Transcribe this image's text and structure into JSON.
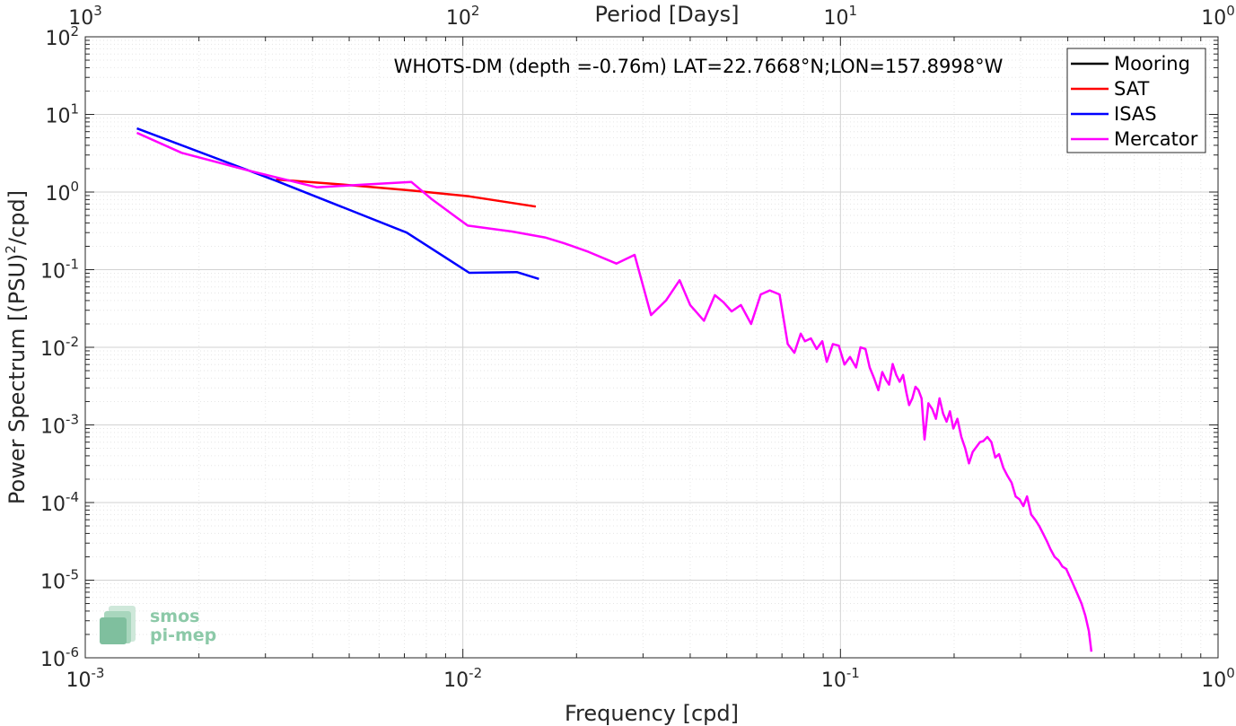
{
  "chart_data": {
    "type": "line",
    "title": "WHOTS-DM (depth =-0.76m) LAT=22.7668°N;LON=157.8998°W",
    "xlabel": "Frequency [cpd]",
    "ylabel_main": "Power Spectrum [(PSU)",
    "ylabel_sup": "2",
    "ylabel_tail": "/cpd]",
    "top_xlabel": "Period [Days]",
    "x_scale": "log",
    "y_scale": "log",
    "xlim": [
      0.001,
      1
    ],
    "ylim": [
      1e-06,
      100
    ],
    "grid": true,
    "legend_position": "top-right",
    "x_ticks": [
      {
        "value": 0.001,
        "base": "10",
        "exp": "-3"
      },
      {
        "value": 0.01,
        "base": "10",
        "exp": "-2"
      },
      {
        "value": 0.1,
        "base": "10",
        "exp": "-1"
      },
      {
        "value": 1,
        "base": "10",
        "exp": "0"
      }
    ],
    "y_ticks": [
      {
        "value": 1e-06,
        "base": "10",
        "exp": "-6"
      },
      {
        "value": 1e-05,
        "base": "10",
        "exp": "-5"
      },
      {
        "value": 0.0001,
        "base": "10",
        "exp": "-4"
      },
      {
        "value": 0.001,
        "base": "10",
        "exp": "-3"
      },
      {
        "value": 0.01,
        "base": "10",
        "exp": "-2"
      },
      {
        "value": 0.1,
        "base": "10",
        "exp": "-1"
      },
      {
        "value": 1,
        "base": "10",
        "exp": "0"
      },
      {
        "value": 10,
        "base": "10",
        "exp": "1"
      },
      {
        "value": 100,
        "base": "10",
        "exp": "2"
      }
    ],
    "top_ticks": [
      {
        "value": 0.001,
        "base": "10",
        "exp": "3"
      },
      {
        "value": 0.01,
        "base": "10",
        "exp": "2"
      },
      {
        "value": 0.1,
        "base": "10",
        "exp": "1"
      },
      {
        "value": 1,
        "base": "10",
        "exp": "0"
      }
    ],
    "series": [
      {
        "name": "Mooring",
        "color": "#000000",
        "x": [],
        "y": []
      },
      {
        "name": "SAT",
        "color": "#ff0000",
        "x": [
          0.0032,
          0.0048,
          0.0073,
          0.0104,
          0.0156
        ],
        "y": [
          1.45,
          1.25,
          1.05,
          0.88,
          0.65
        ]
      },
      {
        "name": "ISAS",
        "color": "#0000ff",
        "x": [
          0.00137,
          0.0032,
          0.0071,
          0.0104,
          0.0139,
          0.0159
        ],
        "y": [
          6.6,
          1.4,
          0.3,
          0.091,
          0.093,
          0.076
        ]
      },
      {
        "name": "Mercator",
        "color": "#ff00ff",
        "x": [
          0.00137,
          0.0018,
          0.0027,
          0.0041,
          0.0055,
          0.0073,
          0.0083,
          0.0103,
          0.0135,
          0.0165,
          0.0185,
          0.0215,
          0.0255,
          0.0285,
          0.0315,
          0.0345,
          0.0375,
          0.04,
          0.0435,
          0.0465,
          0.049,
          0.0515,
          0.0545,
          0.058,
          0.0615,
          0.065,
          0.069,
          0.0725,
          0.0755,
          0.0785,
          0.0805,
          0.0835,
          0.0865,
          0.0895,
          0.092,
          0.0955,
          0.099,
          0.1025,
          0.106,
          0.11,
          0.113,
          0.1165,
          0.1195,
          0.1225,
          0.126,
          0.129,
          0.132,
          0.1345,
          0.1375,
          0.1405,
          0.1435,
          0.1465,
          0.1495,
          0.152,
          0.155,
          0.158,
          0.161,
          0.164,
          0.167,
          0.171,
          0.175,
          0.179,
          0.183,
          0.187,
          0.191,
          0.195,
          0.199,
          0.204,
          0.209,
          0.214,
          0.219,
          0.224,
          0.229,
          0.234,
          0.239,
          0.245,
          0.251,
          0.257,
          0.263,
          0.27,
          0.277,
          0.284,
          0.291,
          0.298,
          0.305,
          0.312,
          0.32,
          0.328,
          0.336,
          0.344,
          0.352,
          0.36,
          0.369,
          0.378,
          0.387,
          0.396,
          0.405,
          0.415,
          0.425,
          0.435,
          0.445,
          0.455,
          0.462
        ],
        "y": [
          5.8,
          3.2,
          1.9,
          1.15,
          1.25,
          1.35,
          0.8,
          0.37,
          0.31,
          0.26,
          0.22,
          0.17,
          0.12,
          0.155,
          0.026,
          0.04,
          0.073,
          0.035,
          0.022,
          0.047,
          0.038,
          0.029,
          0.035,
          0.02,
          0.048,
          0.054,
          0.048,
          0.011,
          0.0085,
          0.015,
          0.012,
          0.013,
          0.0095,
          0.012,
          0.0065,
          0.011,
          0.0105,
          0.006,
          0.0075,
          0.0055,
          0.01,
          0.0095,
          0.0055,
          0.0041,
          0.0028,
          0.0048,
          0.0038,
          0.0033,
          0.0061,
          0.0044,
          0.0036,
          0.0044,
          0.0026,
          0.0018,
          0.0022,
          0.0031,
          0.0028,
          0.0022,
          0.00065,
          0.0019,
          0.0016,
          0.0012,
          0.0022,
          0.0014,
          0.0011,
          0.0015,
          0.0009,
          0.0012,
          0.0007,
          0.0005,
          0.00032,
          0.00045,
          0.00052,
          0.0006,
          0.00062,
          0.0007,
          0.0006,
          0.00038,
          0.00042,
          0.00028,
          0.00022,
          0.00018,
          0.00012,
          0.00011,
          9e-05,
          0.00012,
          7e-05,
          6e-05,
          5e-05,
          4e-05,
          3.2e-05,
          2.5e-05,
          2e-05,
          1.8e-05,
          1.5e-05,
          1.4e-05,
          1.1e-05,
          8.5e-06,
          6.5e-06,
          5e-06,
          3.5e-06,
          2.2e-06,
          1.2e-06
        ]
      }
    ]
  },
  "logo": {
    "line1": "smos",
    "line2": "pi-mep"
  }
}
